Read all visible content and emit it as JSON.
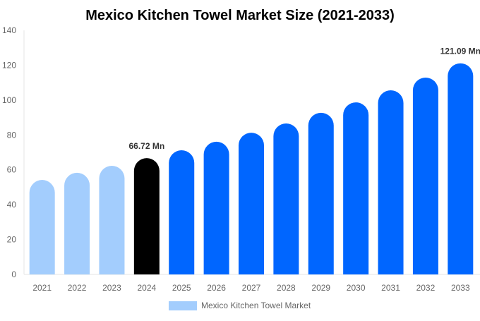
{
  "chart_data": {
    "type": "bar",
    "title": "Mexico Kitchen Towel Market Size (2021-2033)",
    "xlabel": "",
    "ylabel": "",
    "ylim": [
      0,
      140
    ],
    "yticks": [
      0,
      20,
      40,
      60,
      80,
      100,
      120,
      140
    ],
    "grid": false,
    "legend_placement": "bottom",
    "categories": [
      "2021",
      "2022",
      "2023",
      "2024",
      "2025",
      "2026",
      "2027",
      "2028",
      "2029",
      "2030",
      "2031",
      "2032",
      "2033"
    ],
    "series": [
      {
        "name": "Mexico Kitchen Towel Market",
        "values": [
          54.2,
          58.3,
          62.3,
          66.72,
          71.2,
          76.1,
          81.3,
          86.6,
          92.7,
          98.7,
          105.6,
          112.9,
          121.09
        ]
      }
    ],
    "annotations": [
      {
        "category": "2024",
        "text": "66.72 Mn"
      },
      {
        "category": "2033",
        "text": "121.09 Mn"
      }
    ],
    "colors": {
      "historical": "#a3cdfd",
      "base_year": "#000000",
      "forecast": "#0066ff"
    },
    "base_year": "2024"
  }
}
